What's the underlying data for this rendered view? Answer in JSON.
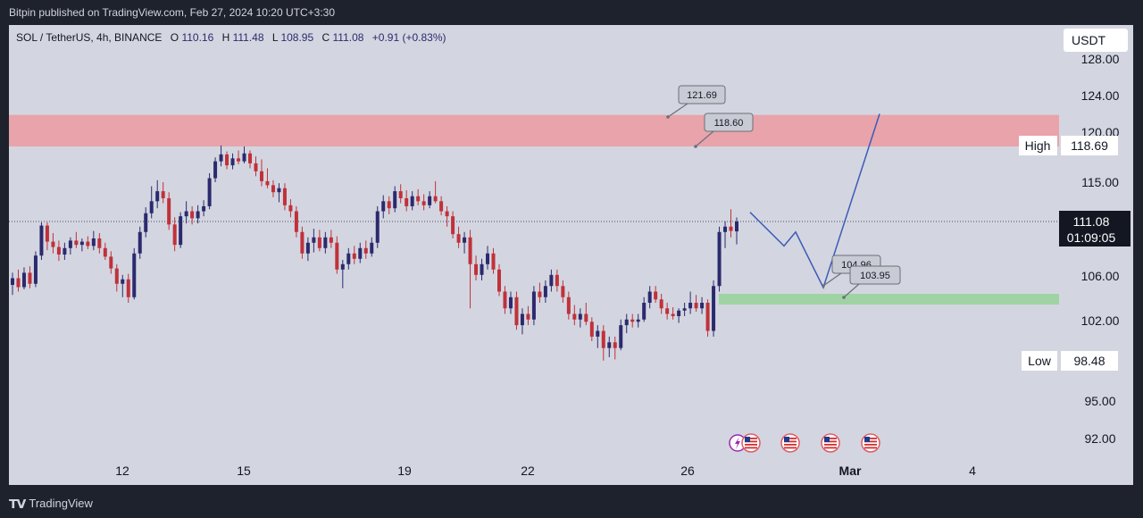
{
  "header": {
    "published_text": "Bitpin published on TradingView.com, Feb 27, 2024 10:20 UTC+3:30"
  },
  "footer": {
    "brand": "TradingView",
    "logo_icon": "tradingview-logo-icon"
  },
  "colors": {
    "up": "#2b2a6e",
    "down": "#c0313a",
    "resistance_zone": "#e8a3ab",
    "support_zone": "#9fd3a3",
    "projection": "#3d5bb8",
    "last_price_bg": "#131722"
  },
  "chart_data": {
    "type": "candlestick",
    "symbol": "SOL / TetherUS, 4h, BINANCE",
    "ohlc": {
      "o_label": "O",
      "o": "110.16",
      "h_label": "H",
      "h": "111.48",
      "l_label": "L",
      "l": "108.95",
      "c_label": "C",
      "c": "111.08",
      "change": "+0.91 (+0.83%)"
    },
    "currency": "USDT",
    "y_ticks": [
      "128.00",
      "124.00",
      "120.00",
      "115.00",
      "106.00",
      "102.00",
      "95.00",
      "92.00"
    ],
    "x_ticks": [
      "12",
      "15",
      "19",
      "22",
      "26",
      "Mar",
      "4"
    ],
    "high_marker": {
      "label": "High",
      "value": "118.69"
    },
    "low_marker": {
      "label": "Low",
      "value": "98.48"
    },
    "last_price": {
      "value": "111.08",
      "countdown": "01:09:05"
    },
    "callouts": [
      "121.69",
      "118.60",
      "104.96",
      "103.95"
    ],
    "resistance_zone": [
      118.6,
      121.69
    ],
    "support_zone": [
      103.95,
      104.96
    ],
    "projection_path": [
      [
        0,
        112
      ],
      [
        3,
        108.8
      ],
      [
        4,
        110.1
      ],
      [
        7,
        104.96
      ],
      [
        12,
        122
      ]
    ],
    "event_icons": [
      "lightning-event-icon",
      "us-flag-event-icon",
      "us-flag-event-icon",
      "us-flag-event-icon",
      "us-flag-event-icon"
    ],
    "candles": [
      {
        "o": 105.2,
        "h": 106.3,
        "l": 104.3,
        "c": 105.8
      },
      {
        "o": 105.8,
        "h": 106.6,
        "l": 104.6,
        "c": 105.0
      },
      {
        "o": 105.0,
        "h": 106.8,
        "l": 104.8,
        "c": 106.3
      },
      {
        "o": 106.3,
        "h": 106.9,
        "l": 104.9,
        "c": 105.3
      },
      {
        "o": 105.3,
        "h": 108.3,
        "l": 105.0,
        "c": 107.9
      },
      {
        "o": 107.9,
        "h": 111.0,
        "l": 107.5,
        "c": 110.7
      },
      {
        "o": 110.7,
        "h": 111.0,
        "l": 108.4,
        "c": 109.2
      },
      {
        "o": 109.2,
        "h": 110.0,
        "l": 108.1,
        "c": 108.7
      },
      {
        "o": 108.7,
        "h": 109.3,
        "l": 107.4,
        "c": 108.0
      },
      {
        "o": 108.0,
        "h": 109.1,
        "l": 107.5,
        "c": 108.6
      },
      {
        "o": 108.6,
        "h": 109.6,
        "l": 108.0,
        "c": 109.3
      },
      {
        "o": 109.3,
        "h": 110.1,
        "l": 108.6,
        "c": 108.9
      },
      {
        "o": 108.9,
        "h": 109.5,
        "l": 108.3,
        "c": 109.2
      },
      {
        "o": 109.2,
        "h": 109.7,
        "l": 108.5,
        "c": 108.8
      },
      {
        "o": 108.8,
        "h": 110.2,
        "l": 108.4,
        "c": 109.5
      },
      {
        "o": 109.5,
        "h": 110.0,
        "l": 108.1,
        "c": 108.6
      },
      {
        "o": 108.6,
        "h": 109.1,
        "l": 107.5,
        "c": 107.8
      },
      {
        "o": 107.8,
        "h": 108.3,
        "l": 106.2,
        "c": 106.7
      },
      {
        "o": 106.7,
        "h": 107.1,
        "l": 104.6,
        "c": 105.3
      },
      {
        "o": 105.3,
        "h": 106.1,
        "l": 104.1,
        "c": 105.7
      },
      {
        "o": 105.7,
        "h": 106.2,
        "l": 103.6,
        "c": 104.1
      },
      {
        "o": 104.1,
        "h": 108.6,
        "l": 103.9,
        "c": 108.1
      },
      {
        "o": 108.1,
        "h": 110.6,
        "l": 107.6,
        "c": 110.1
      },
      {
        "o": 110.1,
        "h": 112.5,
        "l": 109.6,
        "c": 111.9
      },
      {
        "o": 111.9,
        "h": 114.6,
        "l": 111.4,
        "c": 113.1
      },
      {
        "o": 113.1,
        "h": 115.2,
        "l": 112.4,
        "c": 114.1
      },
      {
        "o": 114.1,
        "h": 115.0,
        "l": 112.9,
        "c": 113.4
      },
      {
        "o": 113.4,
        "h": 114.0,
        "l": 110.3,
        "c": 110.8
      },
      {
        "o": 110.8,
        "h": 111.5,
        "l": 108.3,
        "c": 108.9
      },
      {
        "o": 108.9,
        "h": 112.0,
        "l": 108.6,
        "c": 111.6
      },
      {
        "o": 111.6,
        "h": 113.1,
        "l": 110.9,
        "c": 112.1
      },
      {
        "o": 112.1,
        "h": 112.6,
        "l": 110.8,
        "c": 111.4
      },
      {
        "o": 111.4,
        "h": 112.7,
        "l": 110.9,
        "c": 112.1
      },
      {
        "o": 112.1,
        "h": 113.2,
        "l": 111.6,
        "c": 112.6
      },
      {
        "o": 112.6,
        "h": 115.9,
        "l": 112.3,
        "c": 115.4
      },
      {
        "o": 115.4,
        "h": 117.5,
        "l": 115.0,
        "c": 117.1
      },
      {
        "o": 117.1,
        "h": 118.7,
        "l": 116.6,
        "c": 117.8
      },
      {
        "o": 117.8,
        "h": 118.1,
        "l": 116.3,
        "c": 116.7
      },
      {
        "o": 116.7,
        "h": 117.9,
        "l": 116.3,
        "c": 117.4
      },
      {
        "o": 117.4,
        "h": 118.2,
        "l": 116.8,
        "c": 117.1
      },
      {
        "o": 117.1,
        "h": 118.6,
        "l": 116.9,
        "c": 117.9
      },
      {
        "o": 117.9,
        "h": 118.2,
        "l": 116.4,
        "c": 116.9
      },
      {
        "o": 116.9,
        "h": 117.6,
        "l": 115.6,
        "c": 116.1
      },
      {
        "o": 116.1,
        "h": 117.3,
        "l": 114.6,
        "c": 115.1
      },
      {
        "o": 115.1,
        "h": 116.4,
        "l": 114.4,
        "c": 114.7
      },
      {
        "o": 114.7,
        "h": 115.2,
        "l": 113.5,
        "c": 114.0
      },
      {
        "o": 114.0,
        "h": 114.9,
        "l": 113.0,
        "c": 114.4
      },
      {
        "o": 114.4,
        "h": 114.9,
        "l": 112.2,
        "c": 112.7
      },
      {
        "o": 112.7,
        "h": 113.3,
        "l": 111.5,
        "c": 112.1
      },
      {
        "o": 112.1,
        "h": 112.6,
        "l": 109.6,
        "c": 110.1
      },
      {
        "o": 110.1,
        "h": 110.6,
        "l": 107.6,
        "c": 108.1
      },
      {
        "o": 108.1,
        "h": 109.6,
        "l": 107.4,
        "c": 109.1
      },
      {
        "o": 109.1,
        "h": 110.4,
        "l": 108.2,
        "c": 109.6
      },
      {
        "o": 109.6,
        "h": 110.3,
        "l": 108.3,
        "c": 108.6
      },
      {
        "o": 108.6,
        "h": 110.1,
        "l": 108.1,
        "c": 109.6
      },
      {
        "o": 109.6,
        "h": 110.3,
        "l": 108.6,
        "c": 109.1
      },
      {
        "o": 109.1,
        "h": 109.7,
        "l": 106.2,
        "c": 106.6
      },
      {
        "o": 106.6,
        "h": 107.5,
        "l": 104.9,
        "c": 107.1
      },
      {
        "o": 107.1,
        "h": 108.6,
        "l": 106.6,
        "c": 108.1
      },
      {
        "o": 108.1,
        "h": 108.8,
        "l": 107.1,
        "c": 107.6
      },
      {
        "o": 107.6,
        "h": 109.1,
        "l": 107.2,
        "c": 108.6
      },
      {
        "o": 108.6,
        "h": 109.3,
        "l": 107.6,
        "c": 108.1
      },
      {
        "o": 108.1,
        "h": 109.6,
        "l": 107.8,
        "c": 109.1
      },
      {
        "o": 109.1,
        "h": 112.6,
        "l": 108.6,
        "c": 112.1
      },
      {
        "o": 112.1,
        "h": 113.7,
        "l": 111.4,
        "c": 113.1
      },
      {
        "o": 113.1,
        "h": 113.6,
        "l": 111.8,
        "c": 112.4
      },
      {
        "o": 112.4,
        "h": 114.6,
        "l": 112.0,
        "c": 114.1
      },
      {
        "o": 114.1,
        "h": 114.8,
        "l": 112.9,
        "c": 113.4
      },
      {
        "o": 113.4,
        "h": 114.2,
        "l": 112.1,
        "c": 112.6
      },
      {
        "o": 112.6,
        "h": 114.1,
        "l": 112.2,
        "c": 113.6
      },
      {
        "o": 113.6,
        "h": 114.3,
        "l": 112.7,
        "c": 113.1
      },
      {
        "o": 113.1,
        "h": 113.8,
        "l": 112.2,
        "c": 112.7
      },
      {
        "o": 112.7,
        "h": 114.1,
        "l": 112.4,
        "c": 113.6
      },
      {
        "o": 113.6,
        "h": 115.1,
        "l": 112.9,
        "c": 113.1
      },
      {
        "o": 113.1,
        "h": 113.6,
        "l": 111.7,
        "c": 112.1
      },
      {
        "o": 112.1,
        "h": 112.6,
        "l": 110.6,
        "c": 111.6
      },
      {
        "o": 111.6,
        "h": 112.1,
        "l": 109.5,
        "c": 109.9
      },
      {
        "o": 109.9,
        "h": 110.6,
        "l": 108.6,
        "c": 109.1
      },
      {
        "o": 109.1,
        "h": 110.1,
        "l": 108.1,
        "c": 109.6
      },
      {
        "o": 109.6,
        "h": 110.3,
        "l": 103.1,
        "c": 107.1
      },
      {
        "o": 107.1,
        "h": 107.9,
        "l": 105.6,
        "c": 106.1
      },
      {
        "o": 106.1,
        "h": 107.6,
        "l": 105.6,
        "c": 107.1
      },
      {
        "o": 107.1,
        "h": 108.8,
        "l": 106.6,
        "c": 108.1
      },
      {
        "o": 108.1,
        "h": 108.6,
        "l": 106.2,
        "c": 106.6
      },
      {
        "o": 106.6,
        "h": 107.1,
        "l": 104.2,
        "c": 104.6
      },
      {
        "o": 104.6,
        "h": 105.1,
        "l": 102.6,
        "c": 103.1
      },
      {
        "o": 103.1,
        "h": 104.6,
        "l": 102.6,
        "c": 104.1
      },
      {
        "o": 104.1,
        "h": 104.6,
        "l": 101.2,
        "c": 101.6
      },
      {
        "o": 101.6,
        "h": 103.1,
        "l": 100.8,
        "c": 102.6
      },
      {
        "o": 102.6,
        "h": 103.3,
        "l": 101.6,
        "c": 102.1
      },
      {
        "o": 102.1,
        "h": 105.1,
        "l": 101.6,
        "c": 104.6
      },
      {
        "o": 104.6,
        "h": 105.4,
        "l": 103.6,
        "c": 104.1
      },
      {
        "o": 104.1,
        "h": 105.6,
        "l": 103.6,
        "c": 105.1
      },
      {
        "o": 105.1,
        "h": 106.6,
        "l": 104.6,
        "c": 106.1
      },
      {
        "o": 106.1,
        "h": 106.6,
        "l": 104.6,
        "c": 105.1
      },
      {
        "o": 105.1,
        "h": 105.6,
        "l": 103.6,
        "c": 104.1
      },
      {
        "o": 104.1,
        "h": 104.6,
        "l": 102.1,
        "c": 102.6
      },
      {
        "o": 102.6,
        "h": 103.4,
        "l": 101.6,
        "c": 102.1
      },
      {
        "o": 102.1,
        "h": 103.1,
        "l": 101.4,
        "c": 102.6
      },
      {
        "o": 102.6,
        "h": 103.6,
        "l": 101.6,
        "c": 101.9
      },
      {
        "o": 101.9,
        "h": 102.3,
        "l": 100.2,
        "c": 100.6
      },
      {
        "o": 100.6,
        "h": 101.6,
        "l": 99.6,
        "c": 101.1
      },
      {
        "o": 101.1,
        "h": 101.6,
        "l": 98.5,
        "c": 99.6
      },
      {
        "o": 99.6,
        "h": 100.6,
        "l": 98.8,
        "c": 100.1
      },
      {
        "o": 100.1,
        "h": 100.6,
        "l": 98.6,
        "c": 99.6
      },
      {
        "o": 99.6,
        "h": 102.1,
        "l": 99.4,
        "c": 101.6
      },
      {
        "o": 101.6,
        "h": 102.6,
        "l": 100.9,
        "c": 102.1
      },
      {
        "o": 102.1,
        "h": 102.6,
        "l": 101.4,
        "c": 101.9
      },
      {
        "o": 101.9,
        "h": 102.6,
        "l": 101.4,
        "c": 102.1
      },
      {
        "o": 102.1,
        "h": 104.1,
        "l": 101.9,
        "c": 103.6
      },
      {
        "o": 103.6,
        "h": 105.1,
        "l": 103.1,
        "c": 104.6
      },
      {
        "o": 104.6,
        "h": 105.1,
        "l": 103.6,
        "c": 103.9
      },
      {
        "o": 103.9,
        "h": 104.4,
        "l": 102.6,
        "c": 103.1
      },
      {
        "o": 103.1,
        "h": 103.6,
        "l": 102.1,
        "c": 102.6
      },
      {
        "o": 102.6,
        "h": 103.2,
        "l": 102.1,
        "c": 102.4
      },
      {
        "o": 102.4,
        "h": 103.1,
        "l": 101.8,
        "c": 102.9
      },
      {
        "o": 102.9,
        "h": 103.6,
        "l": 102.4,
        "c": 103.1
      },
      {
        "o": 103.1,
        "h": 104.6,
        "l": 102.6,
        "c": 103.6
      },
      {
        "o": 103.6,
        "h": 104.3,
        "l": 102.8,
        "c": 103.1
      },
      {
        "o": 103.1,
        "h": 104.1,
        "l": 102.6,
        "c": 103.6
      },
      {
        "o": 103.6,
        "h": 103.9,
        "l": 100.6,
        "c": 101.1
      },
      {
        "o": 101.1,
        "h": 105.6,
        "l": 100.6,
        "c": 105.1
      },
      {
        "o": 105.1,
        "h": 110.6,
        "l": 104.6,
        "c": 110.1
      },
      {
        "o": 110.1,
        "h": 111.1,
        "l": 108.6,
        "c": 110.6
      },
      {
        "o": 110.6,
        "h": 112.3,
        "l": 109.6,
        "c": 110.2
      },
      {
        "o": 110.16,
        "h": 111.48,
        "l": 108.95,
        "c": 111.08
      }
    ]
  }
}
